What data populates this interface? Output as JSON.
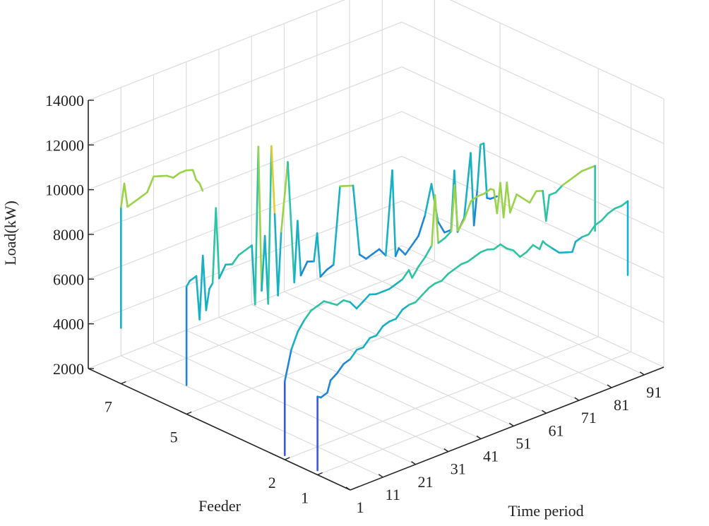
{
  "chart_data": {
    "type": "line3d",
    "title": "",
    "zlabel": "Load(kW)",
    "ylabel": "Feeder",
    "xlabel": "Time period",
    "zlim": [
      2000,
      14000
    ],
    "xlim": [
      1,
      96
    ],
    "z_ticks": [
      "2000",
      "4000",
      "6000",
      "8000",
      "10000",
      "12000",
      "14000"
    ],
    "feeder_ticks": [
      "1",
      "2",
      "5",
      "7"
    ],
    "time_ticks": [
      "1",
      "11",
      "21",
      "31",
      "41",
      "51",
      "61",
      "71",
      "81",
      "91"
    ],
    "colors": {
      "axis": "#262626",
      "grid": "#dcdcdc",
      "palette": [
        "#3a55e0",
        "#1f86d6",
        "#18b0c4",
        "#2ec3a3",
        "#9ad24a",
        "#e3cc2c"
      ]
    },
    "series": [
      {
        "name": "Feeder 1",
        "feeder": 1,
        "points": [
          [
            1,
            2200
          ],
          [
            1,
            5500
          ],
          [
            2,
            5400
          ],
          [
            4,
            5500
          ],
          [
            5,
            6000
          ],
          [
            7,
            6200
          ],
          [
            9,
            6500
          ],
          [
            11,
            6600
          ],
          [
            13,
            6900
          ],
          [
            15,
            6900
          ],
          [
            17,
            7200
          ],
          [
            19,
            7200
          ],
          [
            21,
            7500
          ],
          [
            23,
            7600
          ],
          [
            25,
            7600
          ],
          [
            27,
            7900
          ],
          [
            29,
            8000
          ],
          [
            31,
            8000
          ],
          [
            33,
            8200
          ],
          [
            35,
            8400
          ],
          [
            37,
            8500
          ],
          [
            39,
            8500
          ],
          [
            41,
            8700
          ],
          [
            43,
            8800
          ],
          [
            45,
            8900
          ],
          [
            47,
            8900
          ],
          [
            49,
            9000
          ],
          [
            51,
            9100
          ],
          [
            53,
            9100
          ],
          [
            55,
            9000
          ],
          [
            57,
            9100
          ],
          [
            59,
            8800
          ],
          [
            61,
            8600
          ],
          [
            63,
            8200
          ],
          [
            65,
            8300
          ],
          [
            67,
            8500
          ],
          [
            69,
            8200
          ],
          [
            70,
            8500
          ],
          [
            71,
            8300
          ],
          [
            73,
            8000
          ],
          [
            75,
            7700
          ],
          [
            77,
            7600
          ],
          [
            79,
            7500
          ],
          [
            80,
            7900
          ],
          [
            82,
            8000
          ],
          [
            84,
            8000
          ],
          [
            86,
            8300
          ],
          [
            88,
            8400
          ],
          [
            90,
            8600
          ],
          [
            92,
            8700
          ],
          [
            94,
            8700
          ],
          [
            96,
            8800
          ],
          [
            96,
            5500
          ]
        ]
      },
      {
        "name": "Feeder 2",
        "feeder": 2,
        "points": [
          [
            1,
            2200
          ],
          [
            1,
            5500
          ],
          [
            3,
            6800
          ],
          [
            5,
            7500
          ],
          [
            7,
            7900
          ],
          [
            9,
            8200
          ],
          [
            11,
            8300
          ],
          [
            13,
            8400
          ],
          [
            15,
            8200
          ],
          [
            17,
            8000
          ],
          [
            19,
            8100
          ],
          [
            21,
            7900
          ],
          [
            23,
            7500
          ],
          [
            25,
            7700
          ],
          [
            27,
            7900
          ],
          [
            29,
            7800
          ],
          [
            31,
            7800
          ],
          [
            33,
            7800
          ],
          [
            35,
            7900
          ],
          [
            37,
            8000
          ],
          [
            39,
            8300
          ],
          [
            40,
            7900
          ],
          [
            42,
            8300
          ],
          [
            44,
            8600
          ],
          [
            46,
            9000
          ],
          [
            47,
            11200
          ],
          [
            48,
            9000
          ],
          [
            50,
            9100
          ],
          [
            52,
            9300
          ],
          [
            53,
            11300
          ],
          [
            54,
            9200
          ],
          [
            56,
            9600
          ],
          [
            58,
            10300
          ],
          [
            60,
            10400
          ],
          [
            62,
            10400
          ],
          [
            64,
            10500
          ],
          [
            65,
            10400
          ],
          [
            66,
            9300
          ],
          [
            67,
            10600
          ],
          [
            68,
            9000
          ],
          [
            69,
            10500
          ],
          [
            70,
            9100
          ],
          [
            72,
            9800
          ],
          [
            74,
            9500
          ],
          [
            76,
            9200
          ],
          [
            78,
            9600
          ],
          [
            80,
            9500
          ],
          [
            81,
            8100
          ],
          [
            82,
            9200
          ],
          [
            84,
            9200
          ],
          [
            86,
            9400
          ],
          [
            88,
            9500
          ],
          [
            90,
            9600
          ],
          [
            92,
            9700
          ],
          [
            94,
            9700
          ],
          [
            96,
            9700
          ],
          [
            96,
            6800
          ]
        ]
      },
      {
        "name": "Feeder 5",
        "feeder": 5,
        "points": [
          [
            1,
            3300
          ],
          [
            1,
            7700
          ],
          [
            2,
            7900
          ],
          [
            4,
            8000
          ],
          [
            5,
            6000
          ],
          [
            6,
            8800
          ],
          [
            7,
            6300
          ],
          [
            8,
            7200
          ],
          [
            9,
            7400
          ],
          [
            10,
            10700
          ],
          [
            11,
            7500
          ],
          [
            13,
            8000
          ],
          [
            15,
            7900
          ],
          [
            17,
            8200
          ],
          [
            19,
            8300
          ],
          [
            21,
            8400
          ],
          [
            22,
            5700
          ],
          [
            23,
            12700
          ],
          [
            24,
            6200
          ],
          [
            25,
            8600
          ],
          [
            26,
            5500
          ],
          [
            27,
            12500
          ],
          [
            28,
            9400
          ],
          [
            29,
            5700
          ],
          [
            30,
            8500
          ],
          [
            32,
            11500
          ],
          [
            34,
            6000
          ],
          [
            35,
            8700
          ],
          [
            36,
            6200
          ],
          [
            38,
            6700
          ],
          [
            40,
            6600
          ],
          [
            41,
            7800
          ],
          [
            42,
            5800
          ],
          [
            44,
            6000
          ],
          [
            46,
            6100
          ],
          [
            48,
            9500
          ],
          [
            50,
            9400
          ],
          [
            52,
            9300
          ],
          [
            54,
            6100
          ],
          [
            56,
            5800
          ],
          [
            58,
            5900
          ],
          [
            60,
            6000
          ],
          [
            62,
            5600
          ],
          [
            64,
            9300
          ],
          [
            65,
            5400
          ],
          [
            66,
            5700
          ],
          [
            68,
            5300
          ],
          [
            70,
            5600
          ],
          [
            72,
            5900
          ],
          [
            74,
            6700
          ],
          [
            76,
            8000
          ],
          [
            78,
            6200
          ],
          [
            80,
            5600
          ],
          [
            82,
            5600
          ],
          [
            83,
            8200
          ],
          [
            84,
            5400
          ],
          [
            86,
            5900
          ],
          [
            88,
            8700
          ],
          [
            89,
            5400
          ],
          [
            90,
            6900
          ],
          [
            91,
            8900
          ],
          [
            92,
            8900
          ],
          [
            93,
            6400
          ],
          [
            94,
            6300
          ],
          [
            96,
            6300
          ],
          [
            96,
            6300
          ]
        ]
      },
      {
        "name": "Feeder 7",
        "feeder": 7,
        "points": [
          [
            1,
            4500
          ],
          [
            1,
            9900
          ],
          [
            2,
            10900
          ],
          [
            3,
            9800
          ],
          [
            5,
            9900
          ],
          [
            7,
            10000
          ],
          [
            9,
            10100
          ],
          [
            11,
            10700
          ],
          [
            13,
            10600
          ],
          [
            15,
            10500
          ],
          [
            17,
            10300
          ],
          [
            19,
            10400
          ],
          [
            21,
            10400
          ],
          [
            23,
            10300
          ],
          [
            24,
            9800
          ],
          [
            25,
            9600
          ],
          [
            26,
            9200
          ]
        ]
      }
    ]
  }
}
